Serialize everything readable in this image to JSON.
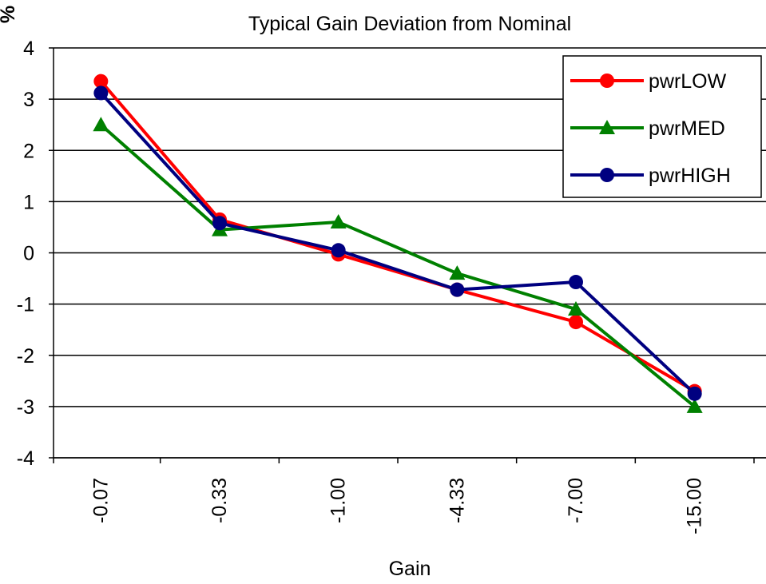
{
  "chart_data": {
    "type": "line",
    "title": "Typical Gain Deviation from Nominal",
    "xlabel": "Gain",
    "ylabel": "%",
    "categories": [
      "-0.07",
      "-0.33",
      "-1.00",
      "-4.33",
      "-7.00",
      "-15.00"
    ],
    "ylim": [
      -4,
      4
    ],
    "yticks": [
      "4",
      "3",
      "2",
      "1",
      "0",
      "-1",
      "-2",
      "-3",
      "-4"
    ],
    "grid": true,
    "legend_position": "top-right",
    "series": [
      {
        "name": "pwrLOW",
        "color": "#ff0000",
        "marker": "circle",
        "values": [
          3.35,
          0.65,
          -0.03,
          -0.72,
          -1.35,
          -2.7
        ]
      },
      {
        "name": "pwrMED",
        "color": "#008000",
        "marker": "triangle",
        "values": [
          2.5,
          0.45,
          0.6,
          -0.4,
          -1.1,
          -3.0
        ]
      },
      {
        "name": "pwrHIGH",
        "color": "#000080",
        "marker": "circle",
        "values": [
          3.12,
          0.58,
          0.05,
          -0.72,
          -0.57,
          -2.75
        ]
      }
    ]
  }
}
